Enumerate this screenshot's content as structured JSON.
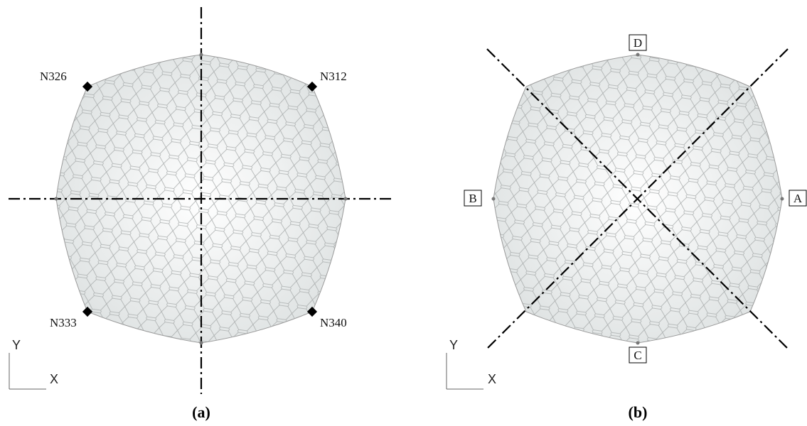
{
  "panel_a": {
    "caption": "(a)",
    "nodes": [
      "N326",
      "N312",
      "N333",
      "N340"
    ],
    "axis_y": "Y",
    "axis_x": "X"
  },
  "panel_b": {
    "caption": "(b)",
    "points": [
      "D",
      "B",
      "A",
      "C"
    ],
    "axis_y": "Y",
    "axis_x": "X"
  }
}
